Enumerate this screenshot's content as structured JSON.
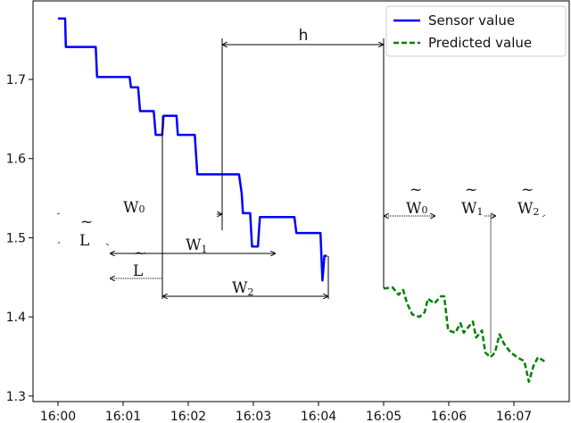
{
  "chart_data": {
    "type": "line",
    "title": "",
    "xlabel": "",
    "ylabel": "",
    "x_unit": "minutes after 16:00",
    "xlim": [
      -0.4,
      7.85
    ],
    "ylim": [
      1.295,
      1.8
    ],
    "x_ticks": [
      {
        "value": 0,
        "label": "16:00"
      },
      {
        "value": 1,
        "label": "16:01"
      },
      {
        "value": 2,
        "label": "16:02"
      },
      {
        "value": 3,
        "label": "16:03"
      },
      {
        "value": 4,
        "label": "16:04"
      },
      {
        "value": 5,
        "label": "16:05"
      },
      {
        "value": 6,
        "label": "16:06"
      },
      {
        "value": 7,
        "label": "16:07"
      }
    ],
    "y_ticks": [
      {
        "value": 1.3,
        "label": "1.3"
      },
      {
        "value": 1.4,
        "label": "1.4"
      },
      {
        "value": 1.5,
        "label": "1.5"
      },
      {
        "value": 1.6,
        "label": "1.6"
      },
      {
        "value": 1.7,
        "label": "1.7"
      }
    ],
    "grid": false,
    "legend_position": "top-right",
    "series": [
      {
        "name": "Sensor value",
        "color": "#0000ff",
        "style": "solid",
        "points": [
          [
            0,
            1.777
          ],
          [
            0.11,
            1.777
          ],
          [
            0.12,
            1.741
          ],
          [
            0.58,
            1.741
          ],
          [
            0.6,
            1.703
          ],
          [
            1.1,
            1.703
          ],
          [
            1.12,
            1.69
          ],
          [
            1.23,
            1.69
          ],
          [
            1.26,
            1.66
          ],
          [
            1.47,
            1.66
          ],
          [
            1.5,
            1.63
          ],
          [
            1.6,
            1.63
          ],
          [
            1.62,
            1.654
          ],
          [
            1.82,
            1.654
          ],
          [
            1.84,
            1.63
          ],
          [
            2.1,
            1.63
          ],
          [
            2.14,
            1.58
          ],
          [
            2.78,
            1.58
          ],
          [
            2.82,
            1.556
          ],
          [
            2.84,
            1.531
          ],
          [
            2.95,
            1.531
          ],
          [
            2.98,
            1.489
          ],
          [
            3.07,
            1.489
          ],
          [
            3.1,
            1.526
          ],
          [
            3.63,
            1.526
          ],
          [
            3.66,
            1.506
          ],
          [
            4.03,
            1.506
          ],
          [
            4.06,
            1.446
          ],
          [
            4.09,
            1.477
          ],
          [
            4.13,
            1.477
          ]
        ]
      },
      {
        "name": "Predicted value",
        "color": "#008000",
        "style": "dashed",
        "points": [
          [
            5.0,
            1.436
          ],
          [
            5.14,
            1.437
          ],
          [
            5.23,
            1.428
          ],
          [
            5.3,
            1.434
          ],
          [
            5.36,
            1.417
          ],
          [
            5.44,
            1.403
          ],
          [
            5.55,
            1.4
          ],
          [
            5.63,
            1.406
          ],
          [
            5.68,
            1.423
          ],
          [
            5.78,
            1.417
          ],
          [
            5.88,
            1.426
          ],
          [
            5.93,
            1.426
          ],
          [
            5.99,
            1.383
          ],
          [
            6.1,
            1.38
          ],
          [
            6.18,
            1.392
          ],
          [
            6.23,
            1.38
          ],
          [
            6.37,
            1.394
          ],
          [
            6.42,
            1.374
          ],
          [
            6.51,
            1.383
          ],
          [
            6.56,
            1.355
          ],
          [
            6.64,
            1.349
          ],
          [
            6.71,
            1.355
          ],
          [
            6.78,
            1.378
          ],
          [
            6.85,
            1.366
          ],
          [
            6.95,
            1.355
          ],
          [
            7.05,
            1.349
          ],
          [
            7.16,
            1.344
          ],
          [
            7.23,
            1.318
          ],
          [
            7.3,
            1.338
          ],
          [
            7.37,
            1.349
          ],
          [
            7.47,
            1.344
          ]
        ]
      }
    ],
    "annotations": {
      "h": {
        "text": "h"
      },
      "W0": {
        "text": "W",
        "sub": "0"
      },
      "W1": {
        "text": "W",
        "sub": "1"
      },
      "W2": {
        "text": "W",
        "sub": "2"
      },
      "L_big": {
        "text": "L",
        "tilde": "~"
      },
      "L_small": {
        "text": "L",
        "tilde": "~"
      },
      "Wt0": {
        "text": "W",
        "sub": "0",
        "tilde": "~"
      },
      "Wt1": {
        "text": "W",
        "sub": "1",
        "tilde": "~"
      },
      "Wt2": {
        "text": "W",
        "sub": "2",
        "tilde": "~"
      }
    }
  }
}
